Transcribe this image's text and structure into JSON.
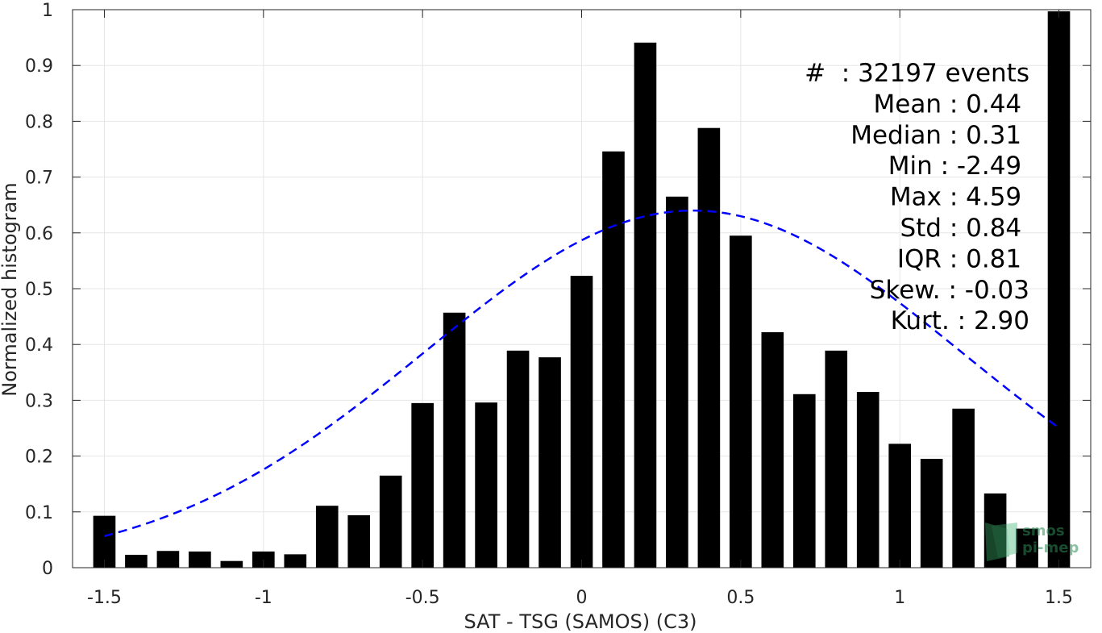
{
  "chart_data": {
    "type": "bar",
    "title": "",
    "xlabel": "SAT - TSG (SAMOS) (C3)",
    "ylabel": "Normalized histogram",
    "xlim": [
      -1.6,
      1.6
    ],
    "ylim": [
      0,
      1
    ],
    "grid": true,
    "bar_width": 0.07,
    "bar_color": "#000000",
    "x": [
      -1.5,
      -1.4,
      -1.3,
      -1.2,
      -1.1,
      -1.0,
      -0.9,
      -0.8,
      -0.7,
      -0.6,
      -0.5,
      -0.4,
      -0.3,
      -0.2,
      -0.1,
      0.0,
      0.1,
      0.2,
      0.3,
      0.4,
      0.5,
      0.6,
      0.7,
      0.8,
      0.9,
      1.0,
      1.1,
      1.2,
      1.3,
      1.4,
      1.5
    ],
    "values": [
      0.093,
      0.023,
      0.03,
      0.029,
      0.012,
      0.029,
      0.024,
      0.111,
      0.094,
      0.165,
      0.295,
      0.457,
      0.296,
      0.389,
      0.377,
      0.523,
      0.746,
      0.941,
      0.665,
      0.788,
      0.595,
      0.422,
      0.311,
      0.389,
      0.315,
      0.222,
      0.195,
      0.285,
      0.133,
      0.07,
      0.997
    ],
    "xticks": [
      -1.5,
      -1,
      -0.5,
      0,
      0.5,
      1,
      1.5
    ],
    "xtick_labels": [
      "-1.5",
      "-1",
      "-0.5",
      "0",
      "0.5",
      "1",
      "1.5"
    ],
    "yticks": [
      0,
      0.1,
      0.2,
      0.3,
      0.4,
      0.5,
      0.6,
      0.7,
      0.8,
      0.9,
      1
    ],
    "ytick_labels": [
      "0",
      "0.1",
      "0.2",
      "0.3",
      "0.4",
      "0.5",
      "0.6",
      "0.7",
      "0.8",
      "0.9",
      "1"
    ],
    "fit_curve": {
      "style": "dashed",
      "color": "#0000ff",
      "mean": 0.35,
      "std": 0.84,
      "peak": 0.64,
      "x_range": [
        -1.5,
        1.5
      ]
    },
    "annotations": [
      "#  : 32197 events",
      "Mean : 0.44 ",
      "Median : 0.31 ",
      "Min : -2.49 ",
      "Max : 4.59 ",
      "Std : 0.84 ",
      "IQR : 0.81 ",
      "Skew. : -0.03",
      "Kurt. : 2.90"
    ]
  },
  "logo": {
    "line1": "smos",
    "line2": "pi-mep",
    "color": "#2e8b57"
  }
}
